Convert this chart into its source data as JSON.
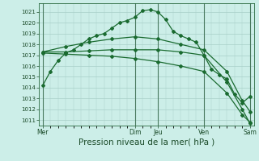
{
  "bg_color": "#cceee8",
  "grid_color": "#a8cfc8",
  "line_color": "#1a6b30",
  "ylim": [
    1010.5,
    1021.8
  ],
  "yticks": [
    1011,
    1012,
    1013,
    1014,
    1015,
    1016,
    1017,
    1018,
    1019,
    1020,
    1021
  ],
  "xlabel": "Pression niveau de la mer( hPa )",
  "xlabel_fontsize": 7.5,
  "xtick_labels": [
    "Mer",
    "Dim",
    "Jeu",
    "Ven",
    "Sam"
  ],
  "xtick_positions": [
    0,
    12,
    15,
    21,
    27
  ],
  "vlines": [
    0,
    12,
    15,
    21,
    27
  ],
  "lines": [
    {
      "x": [
        0,
        1,
        2,
        3,
        4,
        5,
        6,
        7,
        8,
        9,
        10,
        11,
        12,
        13,
        14,
        15,
        16,
        17,
        18,
        19,
        20,
        21,
        22,
        23,
        24,
        25,
        26,
        27
      ],
      "y": [
        1014.2,
        1015.5,
        1016.5,
        1017.2,
        1017.5,
        1018.0,
        1018.5,
        1018.8,
        1019.0,
        1019.5,
        1020.0,
        1020.2,
        1020.5,
        1021.1,
        1021.2,
        1021.0,
        1020.3,
        1019.2,
        1018.8,
        1018.5,
        1018.2,
        1017.0,
        1015.7,
        1015.2,
        1014.8,
        1013.4,
        1012.6,
        1013.2
      ],
      "marker": "D",
      "markersize": 2.0,
      "linewidth": 0.9
    },
    {
      "x": [
        0,
        3,
        6,
        9,
        12,
        15,
        18,
        21,
        24,
        26,
        27
      ],
      "y": [
        1017.3,
        1017.3,
        1017.4,
        1017.5,
        1017.5,
        1017.5,
        1017.3,
        1017.0,
        1014.5,
        1012.0,
        1010.7
      ],
      "marker": "D",
      "markersize": 2.0,
      "linewidth": 0.9
    },
    {
      "x": [
        0,
        3,
        6,
        9,
        12,
        15,
        18,
        21,
        24,
        26,
        27
      ],
      "y": [
        1017.2,
        1017.1,
        1017.0,
        1016.9,
        1016.7,
        1016.4,
        1016.0,
        1015.5,
        1013.5,
        1011.5,
        1010.8
      ],
      "marker": "D",
      "markersize": 2.0,
      "linewidth": 0.9
    },
    {
      "x": [
        0,
        3,
        6,
        9,
        12,
        15,
        18,
        21,
        24,
        26,
        27
      ],
      "y": [
        1017.3,
        1017.8,
        1018.2,
        1018.5,
        1018.7,
        1018.5,
        1018.0,
        1017.5,
        1015.5,
        1012.8,
        1011.8
      ],
      "marker": "D",
      "markersize": 2.0,
      "linewidth": 0.9
    }
  ]
}
